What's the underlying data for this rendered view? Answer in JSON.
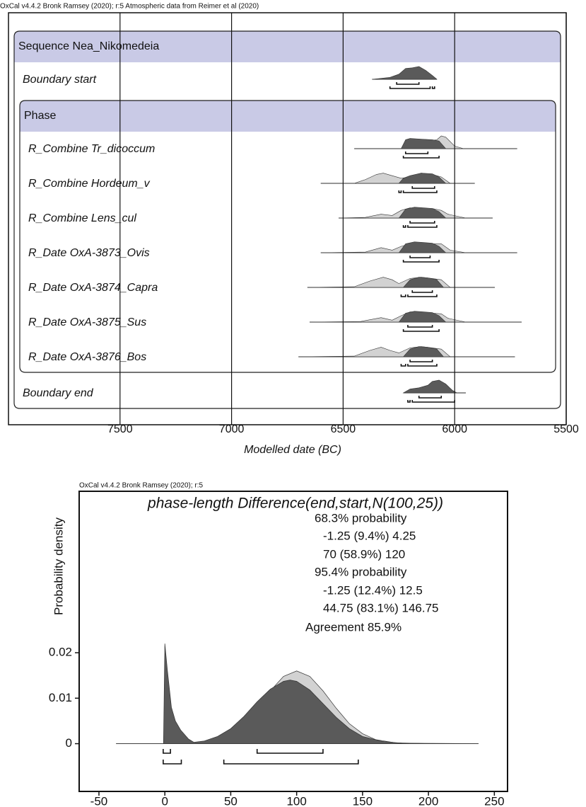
{
  "chart_data": [
    {
      "type": "oxcal-multiplot",
      "header": "OxCal v4.4.2 Bronk Ramsey (2020); r:5 Atmospheric data from Reimer et al (2020)",
      "xlabel": "Modelled date (BC)",
      "xlim": [
        8000,
        5500
      ],
      "xticks": [
        7500,
        7000,
        6500,
        6000,
        5500
      ],
      "grid": true,
      "prior_color": "#d2d2d2",
      "posterior_color": "#5a5a5a",
      "group_color": "#c9cae6",
      "sequence": {
        "label": "Sequence Nea_Nikomedeia",
        "items": [
          {
            "label": "Boundary start",
            "posterior": {
              "x": [
                6370,
                6290,
                6250,
                6220,
                6190,
                6160,
                6130,
                6100,
                6080
              ],
              "values": [
                0,
                0.15,
                0.4,
                0.85,
                0.9,
                1,
                0.7,
                0.3,
                0
              ]
            },
            "hpd68": [
              [
                6260,
                6160
              ]
            ],
            "hpd95": [
              [
                6290,
                6110
              ],
              [
                6100,
                6090
              ]
            ]
          },
          {
            "label": "Phase",
            "items": [
              {
                "label": "R_Combine Tr_dicoccum",
                "prior": {
                  "x": [
                    6450,
                    6240,
                    6220,
                    6180,
                    6120,
                    6080,
                    6060,
                    6040,
                    6000,
                    5960,
                    5720
                  ],
                  "values": [
                    0,
                    0,
                    0.6,
                    0.7,
                    0.6,
                    0.7,
                    1,
                    0.9,
                    0.2,
                    0,
                    0
                  ]
                },
                "posterior": {
                  "x": [
                    6450,
                    6240,
                    6220,
                    6200,
                    6150,
                    6100,
                    6070,
                    6040,
                    5720
                  ],
                  "values": [
                    0,
                    0,
                    0.7,
                    0.8,
                    0.75,
                    0.7,
                    0.6,
                    0,
                    0
                  ]
                },
                "hpd68": [
                  [
                    6220,
                    6120
                  ]
                ],
                "hpd95": [
                  [
                    6230,
                    6070
                  ]
                ]
              },
              {
                "label": "R_Combine Hordeum_v",
                "prior": {
                  "x": [
                    6600,
                    6450,
                    6400,
                    6350,
                    6320,
                    6280,
                    6240,
                    6200,
                    6150,
                    6100,
                    6060,
                    6020,
                    5910
                  ],
                  "values": [
                    0,
                    0,
                    0.3,
                    0.7,
                    0.8,
                    0.6,
                    0.4,
                    0.5,
                    0.8,
                    0.7,
                    0.5,
                    0,
                    0
                  ]
                },
                "posterior": {
                  "x": [
                    6600,
                    6250,
                    6230,
                    6200,
                    6150,
                    6100,
                    6070,
                    6040,
                    5910
                  ],
                  "values": [
                    0,
                    0,
                    0.4,
                    0.6,
                    0.8,
                    0.75,
                    0.5,
                    0,
                    0
                  ]
                },
                "hpd68": [
                  [
                    6190,
                    6090
                  ]
                ],
                "hpd95": [
                  [
                    6250,
                    6240
                  ],
                  [
                    6230,
                    6080
                  ]
                ]
              },
              {
                "label": "R_Combine Lens_cul",
                "prior": {
                  "x": [
                    6520,
                    6400,
                    6330,
                    6280,
                    6240,
                    6200,
                    6150,
                    6100,
                    6060,
                    6030,
                    5950,
                    5830
                  ],
                  "values": [
                    0,
                    0.05,
                    0.3,
                    0.2,
                    0.6,
                    0.8,
                    0.7,
                    0.75,
                    0.6,
                    0.3,
                    0,
                    0
                  ]
                },
                "posterior": {
                  "x": [
                    6520,
                    6250,
                    6220,
                    6180,
                    6140,
                    6100,
                    6070,
                    6040,
                    5830
                  ],
                  "values": [
                    0,
                    0,
                    0.7,
                    0.85,
                    0.8,
                    0.75,
                    0.5,
                    0,
                    0
                  ]
                },
                "hpd68": [
                  [
                    6200,
                    6090
                  ]
                ],
                "hpd95": [
                  [
                    6230,
                    6220
                  ],
                  [
                    6210,
                    6080
                  ]
                ]
              },
              {
                "label": "R_Date OxA-3873_Ovis",
                "prior": {
                  "x": [
                    6600,
                    6400,
                    6330,
                    6280,
                    6240,
                    6200,
                    6150,
                    6100,
                    6060,
                    6020,
                    5950,
                    5720
                  ],
                  "values": [
                    0,
                    0.05,
                    0.4,
                    0.2,
                    0.5,
                    0.7,
                    0.8,
                    0.7,
                    0.7,
                    0.2,
                    0,
                    0
                  ]
                },
                "posterior": {
                  "x": [
                    6600,
                    6250,
                    6220,
                    6180,
                    6140,
                    6100,
                    6070,
                    6040,
                    5720
                  ],
                  "values": [
                    0,
                    0,
                    0.7,
                    0.85,
                    0.8,
                    0.75,
                    0.5,
                    0,
                    0
                  ]
                },
                "hpd68": [
                  [
                    6200,
                    6110
                  ]
                ],
                "hpd95": [
                  [
                    6230,
                    6070
                  ]
                ]
              },
              {
                "label": "R_Date OxA-3874_Capra",
                "prior": {
                  "x": [
                    6660,
                    6450,
                    6380,
                    6320,
                    6280,
                    6250,
                    6200,
                    6150,
                    6100,
                    6060,
                    6020,
                    5820
                  ],
                  "values": [
                    0,
                    0.05,
                    0.5,
                    0.8,
                    0.6,
                    0.3,
                    0.7,
                    0.8,
                    0.7,
                    0.6,
                    0,
                    0
                  ]
                },
                "posterior": {
                  "x": [
                    6660,
                    6230,
                    6200,
                    6160,
                    6120,
                    6080,
                    6050,
                    5820
                  ],
                  "values": [
                    0,
                    0,
                    0.6,
                    0.8,
                    0.75,
                    0.6,
                    0,
                    0
                  ]
                },
                "hpd68": [
                  [
                    6190,
                    6100
                  ]
                ],
                "hpd95": [
                  [
                    6240,
                    6220
                  ],
                  [
                    6210,
                    6080
                  ]
                ]
              },
              {
                "label": "R_Date OxA-3875_Sus",
                "prior": {
                  "x": [
                    6650,
                    6420,
                    6330,
                    6280,
                    6240,
                    6200,
                    6150,
                    6100,
                    6060,
                    6030,
                    5950,
                    5700
                  ],
                  "values": [
                    0,
                    0.05,
                    0.35,
                    0.15,
                    0.5,
                    0.8,
                    0.8,
                    0.7,
                    0.65,
                    0.3,
                    0,
                    0
                  ]
                },
                "posterior": {
                  "x": [
                    6650,
                    6250,
                    6220,
                    6180,
                    6140,
                    6100,
                    6070,
                    6040,
                    5700
                  ],
                  "values": [
                    0,
                    0,
                    0.7,
                    0.85,
                    0.8,
                    0.75,
                    0.5,
                    0,
                    0
                  ]
                },
                "hpd68": [
                  [
                    6210,
                    6100
                  ]
                ],
                "hpd95": [
                  [
                    6230,
                    6070
                  ]
                ]
              },
              {
                "label": "R_Date OxA-3876_Bos",
                "prior": {
                  "x": [
                    6700,
                    6450,
                    6380,
                    6330,
                    6290,
                    6250,
                    6200,
                    6150,
                    6100,
                    6060,
                    6020,
                    5730
                  ],
                  "values": [
                    0,
                    0.05,
                    0.5,
                    0.75,
                    0.5,
                    0.3,
                    0.7,
                    0.8,
                    0.7,
                    0.6,
                    0,
                    0
                  ]
                },
                "posterior": {
                  "x": [
                    6700,
                    6230,
                    6200,
                    6160,
                    6120,
                    6080,
                    6050,
                    5730
                  ],
                  "values": [
                    0,
                    0,
                    0.6,
                    0.8,
                    0.75,
                    0.6,
                    0,
                    0
                  ]
                },
                "hpd68": [
                  [
                    6200,
                    6100
                  ]
                ],
                "hpd95": [
                  [
                    6240,
                    6220
                  ],
                  [
                    6210,
                    6080
                  ]
                ]
              }
            ]
          },
          {
            "label": "Boundary end",
            "posterior": {
              "x": [
                6230,
                6200,
                6160,
                6120,
                6100,
                6070,
                6040,
                6010,
                5990,
                5950
              ],
              "values": [
                0,
                0.3,
                0.4,
                0.6,
                0.9,
                1,
                0.7,
                0.2,
                0,
                0
              ]
            },
            "hpd68": [
              [
                6160,
                6060
              ]
            ],
            "hpd95": [
              [
                6210,
                6200
              ],
              [
                6190,
                6000
              ]
            ]
          }
        ]
      }
    },
    {
      "type": "oxcal-density",
      "header": "OxCal v4.4.2 Bronk Ramsey (2020); r:5",
      "title": "phase-length Difference(end,start,N(100,25))",
      "ylabel": "Probability density",
      "annotations": [
        "68.3% probability",
        "-1.25 (9.4%) 4.25",
        "70 (58.9%) 120",
        "95.4% probability",
        "-1.25 (12.4%) 12.5",
        "44.75 (83.1%) 146.75",
        "Agreement 85.9%"
      ],
      "xlim": [
        -65,
        260
      ],
      "xticks": [
        -50,
        0,
        50,
        100,
        150,
        200,
        250
      ],
      "ylim": [
        -0.0105,
        0.0555
      ],
      "yticks": [
        0,
        0.01,
        0.02
      ],
      "prior_color": "#d2d2d2",
      "posterior_color": "#5a5a5a",
      "prior": {
        "x": [
          -37,
          20,
          25,
          40,
          50,
          60,
          70,
          80,
          90,
          100,
          110,
          120,
          130,
          140,
          150,
          160,
          175,
          200,
          238
        ],
        "values": [
          0,
          0,
          0.0002,
          0.0009,
          0.0022,
          0.0044,
          0.0078,
          0.0116,
          0.0148,
          0.016,
          0.0148,
          0.0116,
          0.0078,
          0.0044,
          0.0022,
          0.0009,
          0.0002,
          0,
          0
        ]
      },
      "posterior": {
        "x": [
          -37,
          -1,
          0,
          2,
          5,
          8,
          12,
          18,
          22,
          30,
          40,
          50,
          60,
          70,
          80,
          90,
          95,
          100,
          110,
          120,
          130,
          140,
          150,
          165,
          180,
          238
        ],
        "values": [
          0,
          0,
          0.022,
          0.016,
          0.008,
          0.005,
          0.003,
          0.001,
          0.0003,
          0.0006,
          0.0016,
          0.0033,
          0.006,
          0.0092,
          0.012,
          0.0137,
          0.014,
          0.0137,
          0.0118,
          0.0088,
          0.0058,
          0.0033,
          0.0016,
          0.0005,
          0.0001,
          0
        ]
      },
      "hpd68": [
        [
          -1.25,
          4.25
        ],
        [
          70,
          120
        ]
      ],
      "hpd95": [
        [
          -1.25,
          12.5
        ],
        [
          44.75,
          146.75
        ]
      ]
    }
  ]
}
